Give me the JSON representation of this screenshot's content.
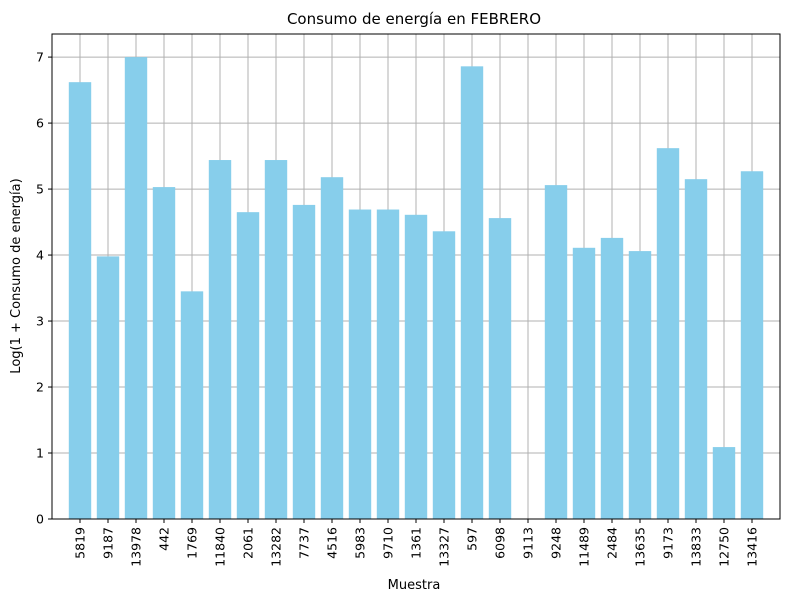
{
  "chart_data": {
    "type": "bar",
    "title": "Consumo de energía en FEBRERO",
    "xlabel": "Muestra",
    "ylabel": "Log(1 + Consumo de energía)",
    "categories": [
      "5819",
      "9187",
      "13978",
      "442",
      "1769",
      "11840",
      "2061",
      "13282",
      "7737",
      "4516",
      "5983",
      "9710",
      "1361",
      "13327",
      "597",
      "6098",
      "9113",
      "9248",
      "11489",
      "2484",
      "13635",
      "9173",
      "13833",
      "12750",
      "13416"
    ],
    "values": [
      6.62,
      3.98,
      7.0,
      5.03,
      3.45,
      5.44,
      4.65,
      5.44,
      4.76,
      5.18,
      4.69,
      4.69,
      4.61,
      4.36,
      6.86,
      4.56,
      0.0,
      5.06,
      4.11,
      4.26,
      4.06,
      5.62,
      5.15,
      1.09,
      5.27
    ],
    "yticks": [
      0,
      1,
      2,
      3,
      4,
      5,
      6,
      7
    ],
    "ylim": [
      0,
      7.35
    ],
    "grid": true,
    "bar_color": "#87ceeb",
    "grid_color": "#b0b0b0"
  }
}
